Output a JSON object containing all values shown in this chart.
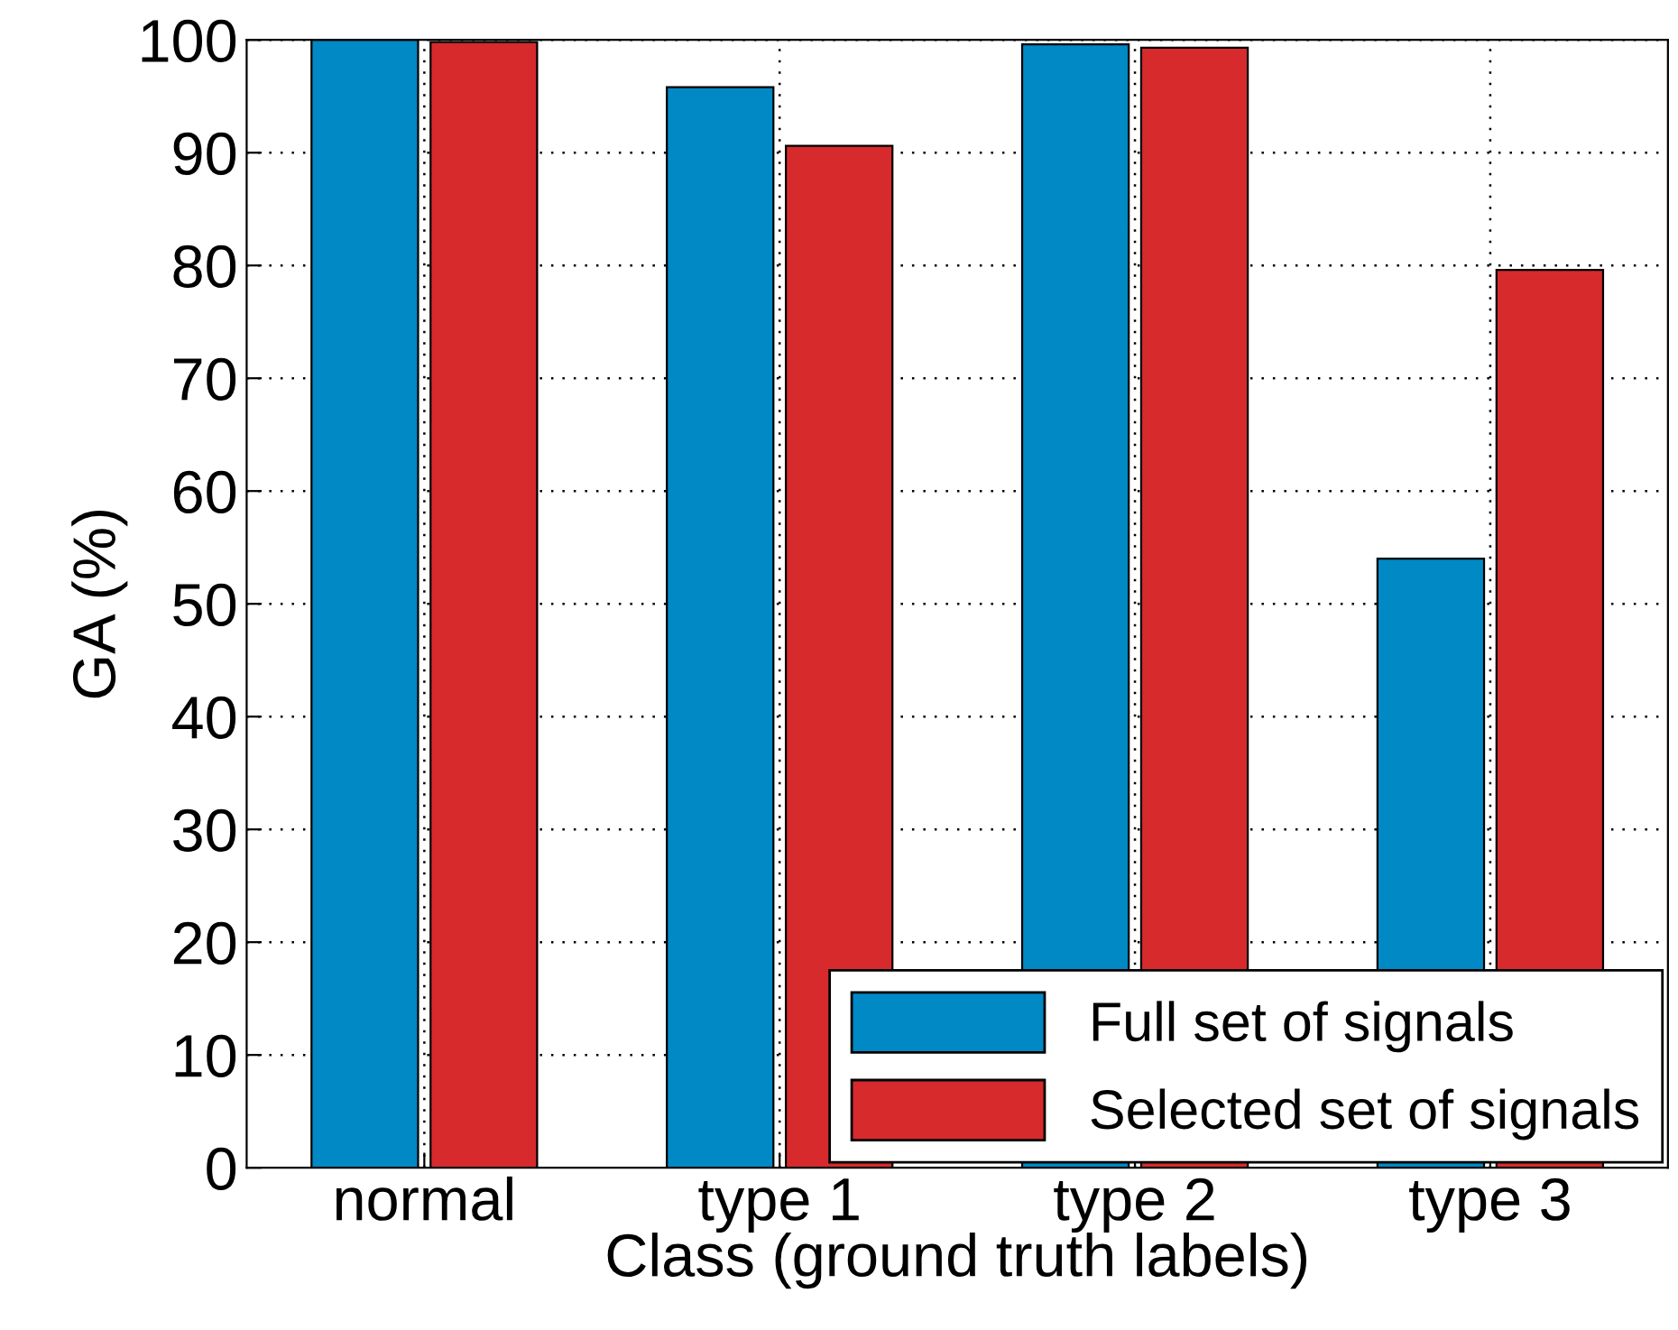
{
  "chart_data": {
    "type": "bar",
    "ylabel": "GA (%)",
    "xlabel": "Class (ground truth labels)",
    "categories": [
      "normal",
      "type 1",
      "type 2",
      "type 3"
    ],
    "series": [
      {
        "name": "Full set of signals",
        "color": "#0089c4",
        "values": [
          100,
          95.8,
          99.6,
          54.0
        ]
      },
      {
        "name": "Selected set of signals",
        "color": "#d62a2c",
        "values": [
          99.8,
          90.6,
          99.3,
          79.6
        ]
      }
    ],
    "ylim": [
      0,
      100
    ],
    "yticks": [
      0,
      10,
      20,
      30,
      40,
      50,
      60,
      70,
      80,
      90,
      100
    ],
    "grid": true,
    "legend": "bottom right"
  }
}
